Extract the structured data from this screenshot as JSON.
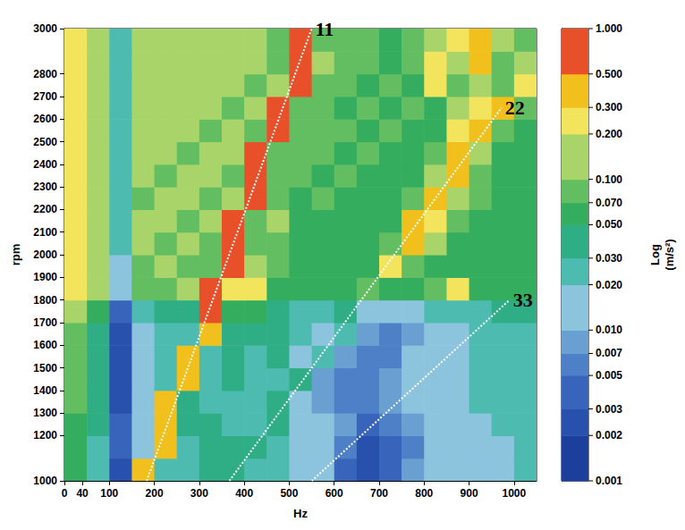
{
  "chart_data": {
    "type": "heatmap",
    "x_label": "Hz",
    "y_label": "rpm",
    "xlim": [
      0,
      1050
    ],
    "xticks": [
      0,
      40,
      100,
      200,
      300,
      400,
      500,
      600,
      700,
      800,
      900,
      1000
    ],
    "ylim": [
      1000,
      3000
    ],
    "yticks": [
      1000,
      1200,
      1300,
      1400,
      1500,
      1600,
      1700,
      1800,
      1900,
      2000,
      2100,
      2200,
      2300,
      2400,
      2500,
      2600,
      2700,
      2800,
      3000
    ],
    "grid": false,
    "x_edges": [
      0,
      50,
      100,
      150,
      200,
      250,
      300,
      350,
      400,
      450,
      500,
      550,
      600,
      650,
      700,
      750,
      800,
      850,
      900,
      950,
      1000,
      1050
    ],
    "y_edges": [
      1000,
      1100,
      1200,
      1300,
      1400,
      1500,
      1600,
      1700,
      1800,
      1900,
      2000,
      2100,
      2200,
      2300,
      2400,
      2500,
      2600,
      2700,
      2800,
      2900,
      3000
    ],
    "cells": [
      [
        0.05,
        0.02,
        0.002,
        0.3,
        0.02,
        0.02,
        0.03,
        0.03,
        0.02,
        0.02,
        0.01,
        0.01,
        0.003,
        0.002,
        0.003,
        0.007,
        0.01,
        0.01,
        0.01,
        0.01,
        0.02
      ],
      [
        0.05,
        0.02,
        0.003,
        0.01,
        0.3,
        0.02,
        0.03,
        0.03,
        0.03,
        0.02,
        0.01,
        0.01,
        0.005,
        0.002,
        0.003,
        0.005,
        0.01,
        0.01,
        0.01,
        0.01,
        0.02
      ],
      [
        0.05,
        0.03,
        0.003,
        0.01,
        0.3,
        0.03,
        0.03,
        0.02,
        0.02,
        0.03,
        0.01,
        0.01,
        0.007,
        0.003,
        0.005,
        0.007,
        0.01,
        0.01,
        0.01,
        0.02,
        0.02
      ],
      [
        0.07,
        0.03,
        0.002,
        0.01,
        0.3,
        0.03,
        0.02,
        0.02,
        0.02,
        0.03,
        0.01,
        0.007,
        0.005,
        0.005,
        0.007,
        0.01,
        0.01,
        0.01,
        0.02,
        0.02,
        0.02
      ],
      [
        0.07,
        0.03,
        0.002,
        0.01,
        0.02,
        0.3,
        0.02,
        0.03,
        0.02,
        0.02,
        0.03,
        0.007,
        0.005,
        0.005,
        0.007,
        0.01,
        0.01,
        0.01,
        0.02,
        0.02,
        0.02
      ],
      [
        0.07,
        0.03,
        0.002,
        0.01,
        0.02,
        0.3,
        0.02,
        0.03,
        0.02,
        0.03,
        0.01,
        0.02,
        0.007,
        0.005,
        0.005,
        0.01,
        0.01,
        0.01,
        0.02,
        0.02,
        0.02
      ],
      [
        0.07,
        0.03,
        0.002,
        0.01,
        0.02,
        0.02,
        0.3,
        0.03,
        0.03,
        0.03,
        0.02,
        0.01,
        0.02,
        0.007,
        0.005,
        0.007,
        0.01,
        0.01,
        0.02,
        0.02,
        0.02
      ],
      [
        0.1,
        0.05,
        0.003,
        0.02,
        0.03,
        0.03,
        0.5,
        0.05,
        0.05,
        0.03,
        0.02,
        0.02,
        0.03,
        0.01,
        0.01,
        0.01,
        0.02,
        0.02,
        0.02,
        0.03,
        0.03
      ],
      [
        0.2,
        0.1,
        0.01,
        0.07,
        0.07,
        0.1,
        0.5,
        0.2,
        0.2,
        0.05,
        0.05,
        0.05,
        0.05,
        0.07,
        0.05,
        0.05,
        0.07,
        0.2,
        0.05,
        0.05,
        0.05
      ],
      [
        0.2,
        0.1,
        0.01,
        0.07,
        0.1,
        0.07,
        0.07,
        0.7,
        0.1,
        0.07,
        0.05,
        0.05,
        0.05,
        0.05,
        0.2,
        0.07,
        0.05,
        0.05,
        0.05,
        0.05,
        0.05
      ],
      [
        0.2,
        0.1,
        0.02,
        0.1,
        0.07,
        0.1,
        0.07,
        1,
        0.07,
        0.07,
        0.05,
        0.05,
        0.05,
        0.05,
        0.07,
        0.3,
        0.1,
        0.05,
        0.05,
        0.05,
        0.05
      ],
      [
        0.2,
        0.1,
        0.02,
        0.1,
        0.1,
        0.07,
        0.1,
        1,
        0.07,
        0.1,
        0.05,
        0.05,
        0.05,
        0.05,
        0.05,
        0.3,
        0.2,
        0.07,
        0.05,
        0.05,
        0.05
      ],
      [
        0.2,
        0.1,
        0.02,
        0.07,
        0.1,
        0.1,
        0.07,
        0.1,
        1,
        0.07,
        0.05,
        0.07,
        0.05,
        0.05,
        0.05,
        0.07,
        0.3,
        0.1,
        0.07,
        0.05,
        0.05
      ],
      [
        0.2,
        0.1,
        0.02,
        0.1,
        0.07,
        0.1,
        0.1,
        0.07,
        1,
        0.07,
        0.07,
        0.05,
        0.07,
        0.05,
        0.05,
        0.05,
        0.1,
        0.3,
        0.07,
        0.05,
        0.05
      ],
      [
        0.2,
        0.1,
        0.02,
        0.1,
        0.1,
        0.07,
        0.1,
        0.1,
        1,
        0.07,
        0.07,
        0.07,
        0.05,
        0.07,
        0.05,
        0.05,
        0.07,
        0.3,
        0.1,
        0.05,
        0.05
      ],
      [
        0.2,
        0.1,
        0.02,
        0.1,
        0.1,
        0.1,
        0.07,
        0.1,
        0.07,
        1,
        0.07,
        0.07,
        0.07,
        0.05,
        0.07,
        0.05,
        0.05,
        0.2,
        0.3,
        0.07,
        0.05
      ],
      [
        0.2,
        0.1,
        0.02,
        0.1,
        0.1,
        0.1,
        0.1,
        0.07,
        0.1,
        1,
        0.07,
        0.07,
        0.05,
        0.07,
        0.05,
        0.07,
        0.05,
        0.1,
        0.2,
        0.3,
        0.07
      ],
      [
        0.2,
        0.1,
        0.02,
        0.1,
        0.1,
        0.1,
        0.1,
        0.1,
        0.07,
        0.1,
        1,
        0.07,
        0.07,
        0.05,
        0.07,
        0.05,
        0.2,
        0.07,
        0.1,
        0.07,
        0.2
      ],
      [
        0.2,
        0.1,
        0.02,
        0.1,
        0.1,
        0.1,
        0.1,
        0.1,
        0.1,
        0.07,
        1,
        0.1,
        0.07,
        0.07,
        0.05,
        0.07,
        0.2,
        0.1,
        0.3,
        0.07,
        0.1
      ],
      [
        0.2,
        0.1,
        0.02,
        0.1,
        0.1,
        0.1,
        0.1,
        0.1,
        0.1,
        0.07,
        1,
        0.07,
        0.07,
        0.07,
        0.05,
        0.07,
        0.1,
        0.2,
        0.3,
        0.1,
        0.07
      ]
    ],
    "colorbar_label": "Log (m/s²)",
    "colorbar_lim": [
      0.001,
      1
    ],
    "colorbar_ticks": [
      0.001,
      0.002,
      0.003,
      0.005,
      0.007,
      {
        "value": 0.01,
        "label": "0.010"
      },
      {
        "value": 0.02,
        "label": "0.020"
      },
      {
        "value": 0.03,
        "label": "0.030"
      },
      {
        "value": 0.05,
        "label": "0.050"
      },
      {
        "value": 0.07,
        "label": "0.070"
      },
      {
        "value": 0.1,
        "label": "0.100"
      },
      {
        "value": 0.2,
        "label": "0.200"
      },
      {
        "value": 0.3,
        "label": "0.300"
      },
      {
        "value": 0.5,
        "label": "0.500"
      },
      {
        "value": 1,
        "label": "1.000"
      }
    ],
    "colors": [
      "#1d3f9c",
      "#2850ad",
      "#3865bb",
      "#4d80c6",
      "#6a9fd2",
      "#8cc4de",
      "#4dbbb0",
      "#2fae86",
      "#35ad5e",
      "#63bd61",
      "#a9d46a",
      "#f2e45c",
      "#f2c01c",
      "#e8502a"
    ],
    "series": [
      {
        "name": "11",
        "type": "line",
        "line_style": "dotted",
        "color": "#ffffff",
        "values": [
          [
            183,
            1000
          ],
          [
            550,
            3000
          ]
        ]
      },
      {
        "name": "22",
        "type": "line",
        "line_style": "dotted",
        "color": "#ffffff",
        "values": [
          [
            367,
            1000
          ],
          [
            972,
            2650
          ]
        ]
      },
      {
        "name": "33",
        "type": "line",
        "line_style": "dotted",
        "color": "#ffffff",
        "values": [
          [
            550,
            1000
          ],
          [
            990,
            1800
          ]
        ]
      }
    ]
  }
}
